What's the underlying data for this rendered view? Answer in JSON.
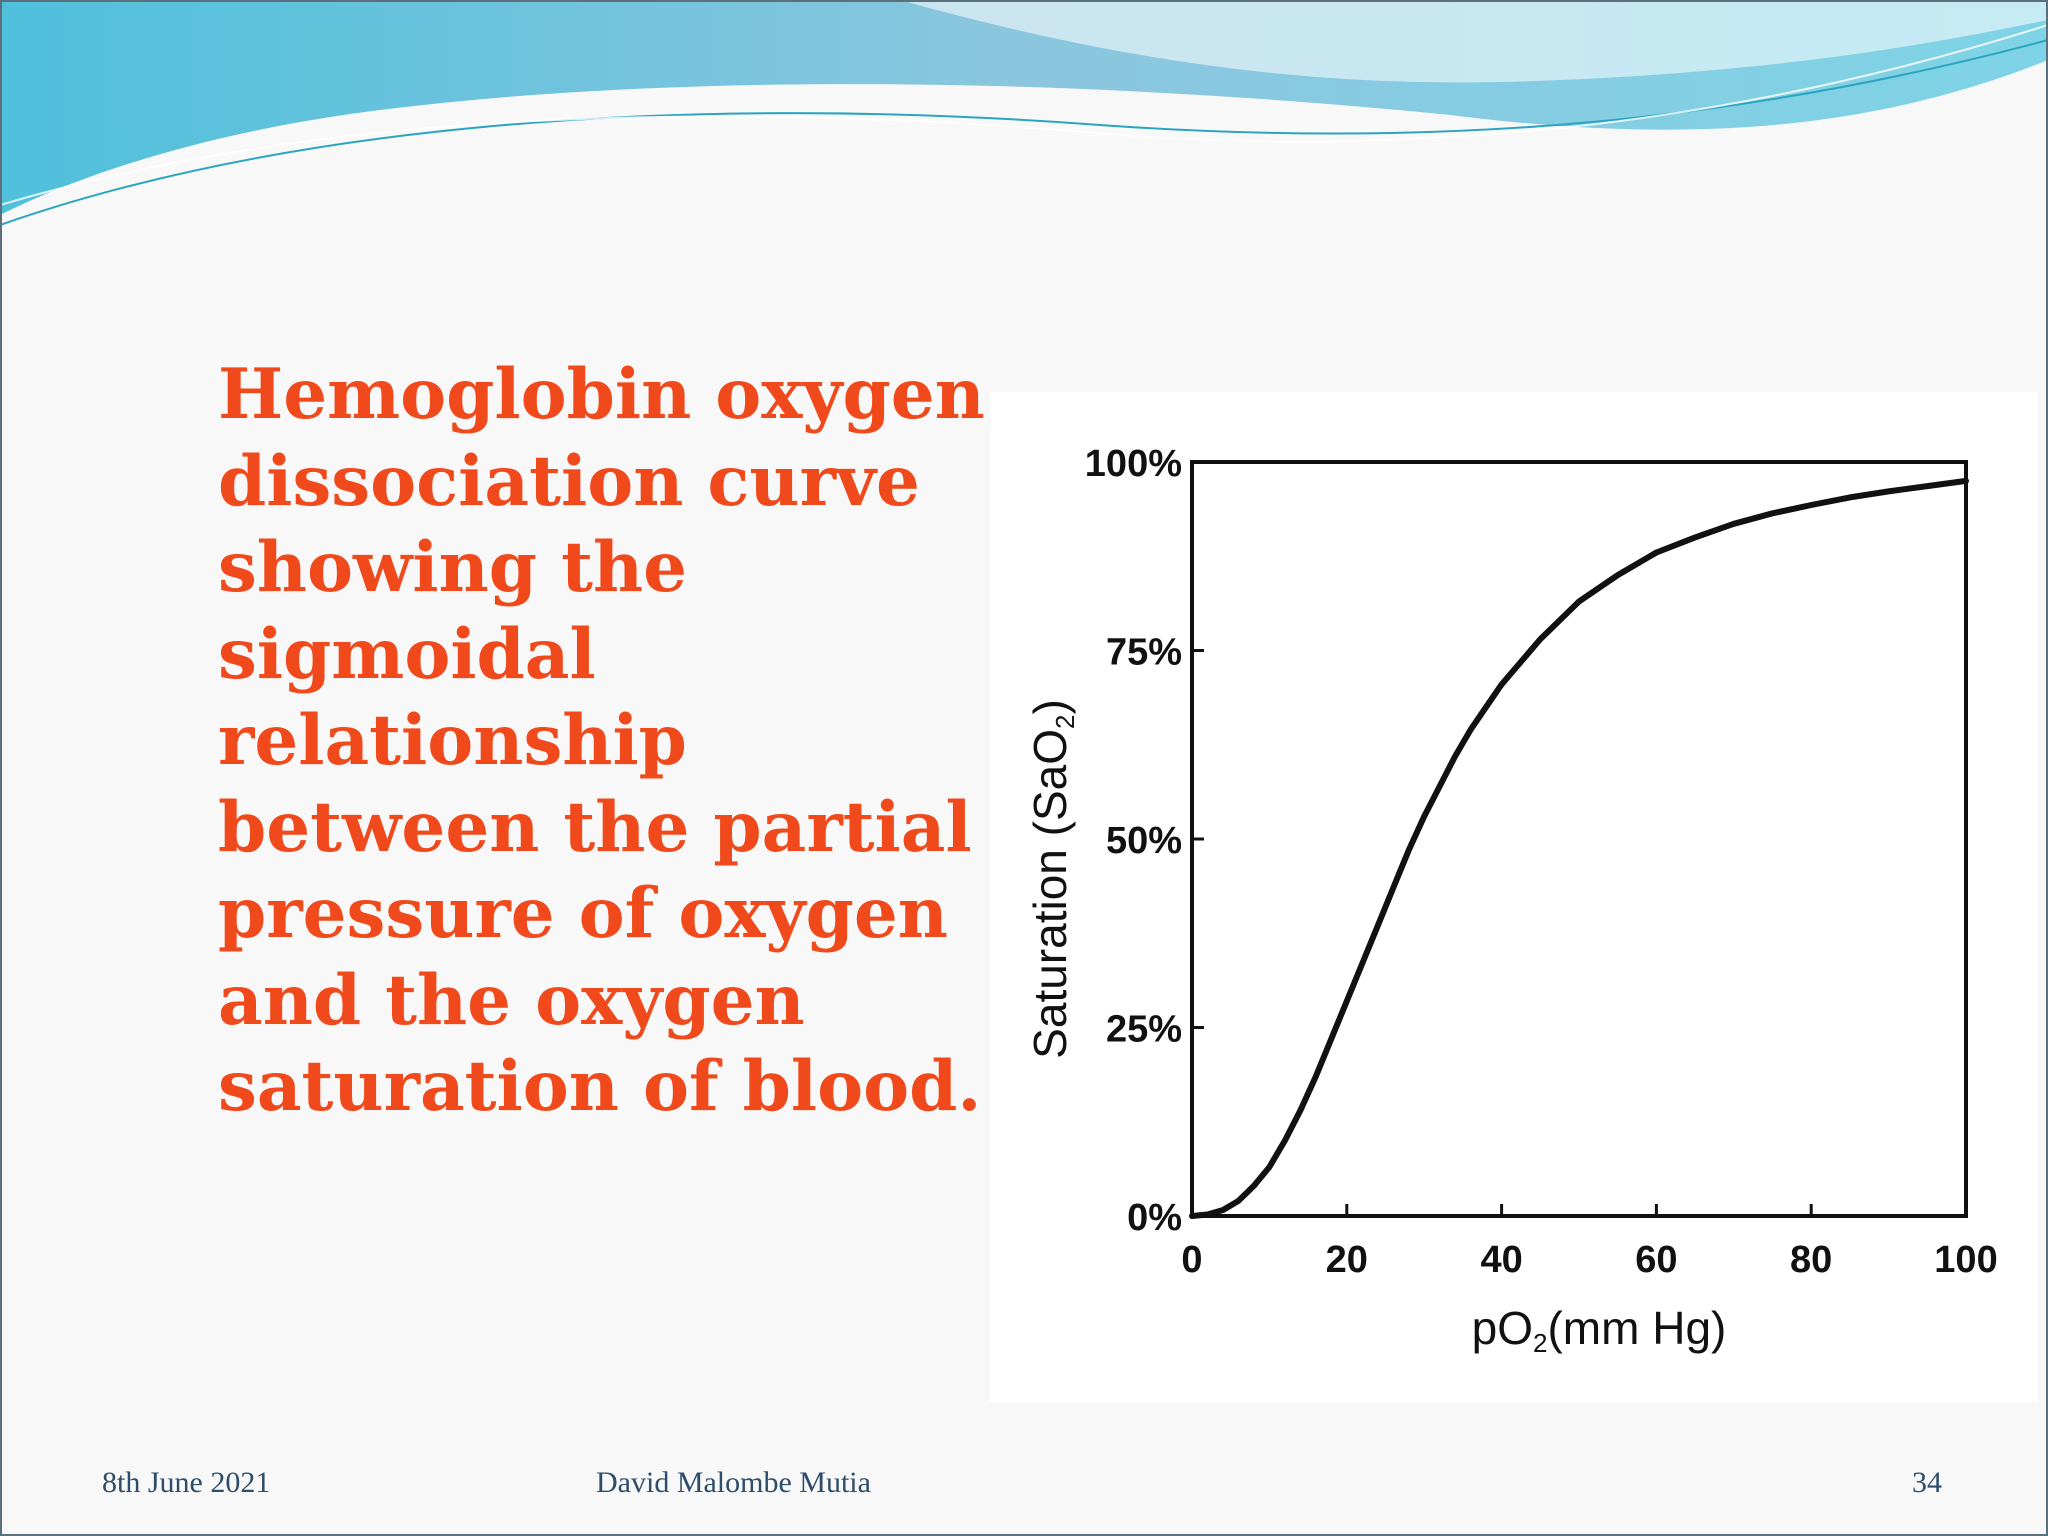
{
  "slide": {
    "caption": "Hemoglobin oxygen\ndissociation curve\nshowing the\nsigmoidal\nrelationship\nbetween the partial\npressure of oxygen\nand the oxygen\nsaturation of blood.",
    "footer": {
      "date": "8th June 2021",
      "author": "David Malombe Mutia",
      "page": "34"
    },
    "colors": {
      "caption": "#f04a1c",
      "footer": "#2d4d6b",
      "wave": "#6fc3dd"
    }
  },
  "chart_data": {
    "type": "line",
    "xlabel_main": "pO",
    "xlabel_sub": "2",
    "xlabel_tail": "(mm Hg)",
    "ylabel_main": "Saturation  (SaO",
    "ylabel_sub": "2",
    "ylabel_tail": ")",
    "xlim": [
      0,
      100
    ],
    "ylim": [
      0,
      100
    ],
    "x_ticks": [
      "0",
      "20",
      "40",
      "60",
      "80",
      "100"
    ],
    "y_ticks": [
      "0%",
      "25%",
      "50%",
      "75%",
      "100%"
    ],
    "x_tick_values": [
      0,
      20,
      40,
      60,
      80,
      100
    ],
    "y_tick_values": [
      0,
      25,
      50,
      75,
      100
    ],
    "grid": false,
    "series": [
      {
        "x": [
          0,
          2,
          4,
          6,
          8,
          10,
          12,
          14,
          16,
          18,
          20,
          22,
          24,
          26,
          28,
          30,
          32,
          34,
          36,
          38,
          40,
          45,
          50,
          55,
          60,
          65,
          70,
          75,
          80,
          85,
          90,
          95,
          100
        ],
        "values": [
          0,
          0.2,
          0.8,
          2,
          4,
          6.5,
          10,
          14,
          18.5,
          23.5,
          28.5,
          33.5,
          38.5,
          43.5,
          48.5,
          53,
          57,
          61,
          64.5,
          67.5,
          70.5,
          76.5,
          81.5,
          85,
          88,
          90,
          91.8,
          93.2,
          94.3,
          95.3,
          96.1,
          96.8,
          97.5
        ]
      }
    ]
  }
}
